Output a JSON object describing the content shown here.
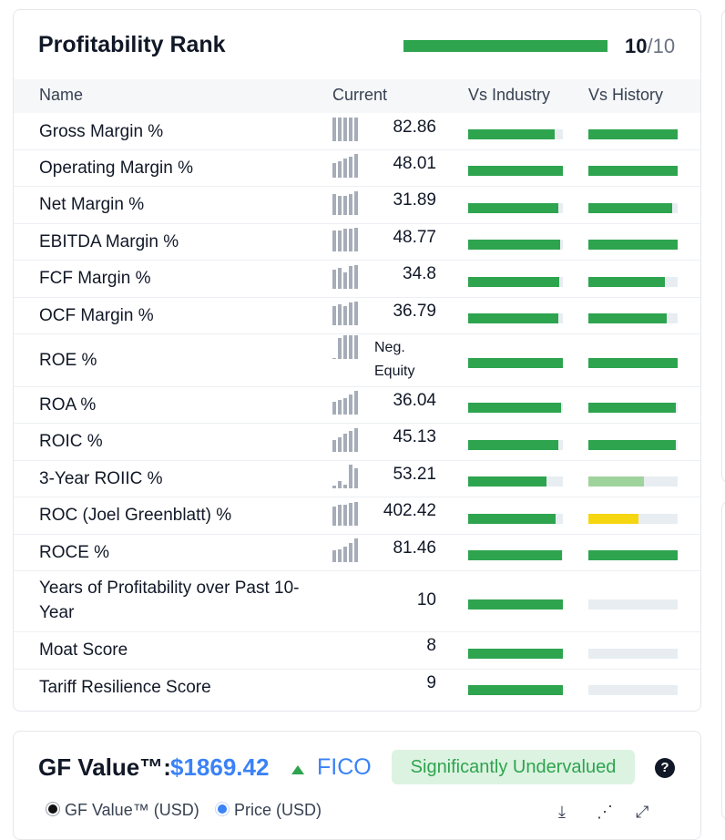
{
  "profitability": {
    "title": "Profitability Rank",
    "rank_value": "10",
    "rank_denominator": "/10",
    "rank_fraction": 1.0,
    "columns": {
      "name": "Name",
      "current": "Current",
      "vs_industry": "Vs Industry",
      "vs_history": "Vs History"
    },
    "rows": [
      {
        "name": "Gross Margin %",
        "value": "82.86",
        "industry": 0.91,
        "history": 1.0,
        "history_color": "#2ea44f",
        "spark": [
          1,
          1,
          1,
          1,
          1
        ]
      },
      {
        "name": "Operating Margin %",
        "value": "48.01",
        "industry": 1.0,
        "history": 1.0,
        "history_color": "#2ea44f",
        "spark": [
          0.6,
          0.7,
          0.8,
          0.9,
          1
        ]
      },
      {
        "name": "Net Margin %",
        "value": "31.89",
        "industry": 0.95,
        "history": 0.94,
        "history_color": "#2ea44f",
        "spark": [
          0.9,
          0.8,
          0.8,
          0.9,
          1
        ]
      },
      {
        "name": "EBITDA Margin %",
        "value": "48.77",
        "industry": 0.97,
        "history": 1.0,
        "history_color": "#2ea44f",
        "spark": [
          0.9,
          0.9,
          0.95,
          0.95,
          1
        ]
      },
      {
        "name": "FCF Margin %",
        "value": "34.8",
        "industry": 0.96,
        "history": 0.86,
        "history_color": "#2ea44f",
        "spark": [
          0.8,
          0.9,
          0.7,
          0.95,
          1
        ]
      },
      {
        "name": "OCF Margin %",
        "value": "36.79",
        "industry": 0.95,
        "history": 0.88,
        "history_color": "#2ea44f",
        "spark": [
          0.8,
          0.9,
          0.8,
          0.95,
          1
        ]
      },
      {
        "name": "ROE %",
        "value": "",
        "neg_line1": "Neg.",
        "neg_line2": "Equity",
        "industry": 1.0,
        "history": 1.0,
        "history_color": "#2ea44f",
        "spark": [
          0.05,
          0.9,
          1,
          1,
          1
        ]
      },
      {
        "name": "ROA %",
        "value": "36.04",
        "industry": 0.98,
        "history": 0.98,
        "history_color": "#2ea44f",
        "spark": [
          0.55,
          0.6,
          0.7,
          0.85,
          1
        ]
      },
      {
        "name": "ROIC %",
        "value": "45.13",
        "industry": 0.95,
        "history": 0.98,
        "history_color": "#2ea44f",
        "spark": [
          0.5,
          0.6,
          0.75,
          0.9,
          1
        ]
      },
      {
        "name": "3-Year ROIIC %",
        "value": "53.21",
        "industry": 0.83,
        "history": 0.62,
        "history_color": "#9fd39c",
        "spark": [
          0.1,
          0.3,
          0.15,
          1,
          0.85
        ]
      },
      {
        "name": "ROC (Joel Greenblatt) %",
        "value": "402.42",
        "industry": 0.92,
        "history": 0.56,
        "history_color": "#f5d611",
        "spark": [
          0.8,
          0.9,
          0.9,
          0.95,
          1
        ]
      },
      {
        "name": "ROCE %",
        "value": "81.46",
        "industry": 0.99,
        "history": 1.0,
        "history_color": "#2ea44f",
        "spark": [
          0.5,
          0.55,
          0.65,
          0.8,
          1
        ]
      },
      {
        "name": "Years of Profitability over Past 10-Year",
        "value": "10",
        "industry": 1.0,
        "history": 0,
        "history_color": "#2ea44f",
        "spark": []
      },
      {
        "name": "Moat Score",
        "value": "8",
        "industry": 1.0,
        "history": 0,
        "history_color": "#2ea44f",
        "spark": []
      },
      {
        "name": "Tariff Resilience Score",
        "value": "9",
        "industry": 1.0,
        "history": 0,
        "history_color": "#2ea44f",
        "spark": []
      }
    ]
  },
  "gf_value": {
    "title": "GF Value™:",
    "price": "$1869.42",
    "ticker": "FICO",
    "badge": "Significantly Undervalued",
    "help": "?",
    "legend": [
      {
        "label": "GF Value™ (USD)"
      },
      {
        "label": "Price (USD)"
      }
    ],
    "tools": [
      "download-icon",
      "share-icon",
      "expand-icon"
    ]
  },
  "colors": {
    "green": "#2ea44f",
    "light_green": "#9fd39c",
    "yellow": "#f5d611",
    "track": "#e8edf2",
    "blue": "#3b82f6"
  }
}
